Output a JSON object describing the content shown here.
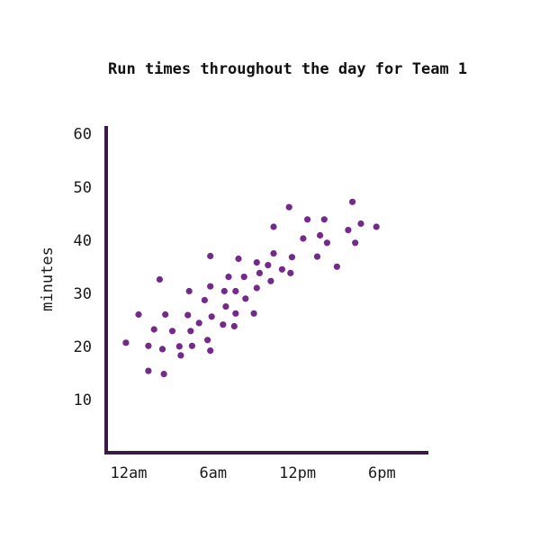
{
  "chart_data": {
    "type": "scatter",
    "title": "Run times throughout the day for Team 1",
    "xlabel": "",
    "ylabel": "minutes",
    "x_ticks": [
      {
        "value": 0,
        "label": "12am"
      },
      {
        "value": 6,
        "label": "6am"
      },
      {
        "value": 12,
        "label": "12pm"
      },
      {
        "value": 18,
        "label": "6pm"
      }
    ],
    "y_ticks": [
      10,
      20,
      30,
      40,
      50,
      60
    ],
    "xlim": [
      -1.6,
      21.3
    ],
    "ylim": [
      0,
      63
    ],
    "grid": false,
    "legend": "none",
    "colors": {
      "point": "#732a8a",
      "axis": "#3a1a47"
    },
    "series": [
      {
        "points": [
          {
            "x": -0.2,
            "y": 20.7
          },
          {
            "x": 0.7,
            "y": 26.0
          },
          {
            "x": 1.4,
            "y": 20.1
          },
          {
            "x": 1.4,
            "y": 15.4
          },
          {
            "x": 1.8,
            "y": 23.2
          },
          {
            "x": 2.2,
            "y": 32.6
          },
          {
            "x": 2.4,
            "y": 19.5
          },
          {
            "x": 2.6,
            "y": 26.0
          },
          {
            "x": 2.5,
            "y": 14.8
          },
          {
            "x": 3.1,
            "y": 22.9
          },
          {
            "x": 3.6,
            "y": 20.0
          },
          {
            "x": 3.7,
            "y": 18.3
          },
          {
            "x": 4.2,
            "y": 25.9
          },
          {
            "x": 4.3,
            "y": 30.4
          },
          {
            "x": 4.4,
            "y": 22.9
          },
          {
            "x": 4.5,
            "y": 20.1
          },
          {
            "x": 5.0,
            "y": 24.4
          },
          {
            "x": 5.4,
            "y": 28.7
          },
          {
            "x": 5.6,
            "y": 21.2
          },
          {
            "x": 5.8,
            "y": 19.2
          },
          {
            "x": 5.8,
            "y": 31.3
          },
          {
            "x": 5.8,
            "y": 37.0
          },
          {
            "x": 5.9,
            "y": 25.6
          },
          {
            "x": 6.7,
            "y": 24.1
          },
          {
            "x": 6.8,
            "y": 30.4
          },
          {
            "x": 6.9,
            "y": 27.5
          },
          {
            "x": 7.1,
            "y": 33.1
          },
          {
            "x": 7.5,
            "y": 23.8
          },
          {
            "x": 7.6,
            "y": 26.2
          },
          {
            "x": 7.6,
            "y": 30.4
          },
          {
            "x": 7.8,
            "y": 36.5
          },
          {
            "x": 8.2,
            "y": 33.1
          },
          {
            "x": 8.3,
            "y": 29.0
          },
          {
            "x": 8.9,
            "y": 26.2
          },
          {
            "x": 9.1,
            "y": 35.8
          },
          {
            "x": 9.1,
            "y": 31.0
          },
          {
            "x": 9.3,
            "y": 33.8
          },
          {
            "x": 9.9,
            "y": 35.3
          },
          {
            "x": 10.1,
            "y": 32.3
          },
          {
            "x": 10.3,
            "y": 37.5
          },
          {
            "x": 10.3,
            "y": 42.5
          },
          {
            "x": 10.9,
            "y": 34.5
          },
          {
            "x": 11.4,
            "y": 46.2
          },
          {
            "x": 11.5,
            "y": 33.8
          },
          {
            "x": 11.6,
            "y": 36.8
          },
          {
            "x": 12.4,
            "y": 40.3
          },
          {
            "x": 12.7,
            "y": 43.9
          },
          {
            "x": 13.4,
            "y": 36.9
          },
          {
            "x": 13.6,
            "y": 40.9
          },
          {
            "x": 13.9,
            "y": 43.9
          },
          {
            "x": 14.1,
            "y": 39.5
          },
          {
            "x": 14.8,
            "y": 35.0
          },
          {
            "x": 15.6,
            "y": 41.9
          },
          {
            "x": 15.9,
            "y": 47.2
          },
          {
            "x": 16.1,
            "y": 39.5
          },
          {
            "x": 16.5,
            "y": 43.1
          },
          {
            "x": 17.6,
            "y": 42.5
          }
        ]
      }
    ]
  }
}
